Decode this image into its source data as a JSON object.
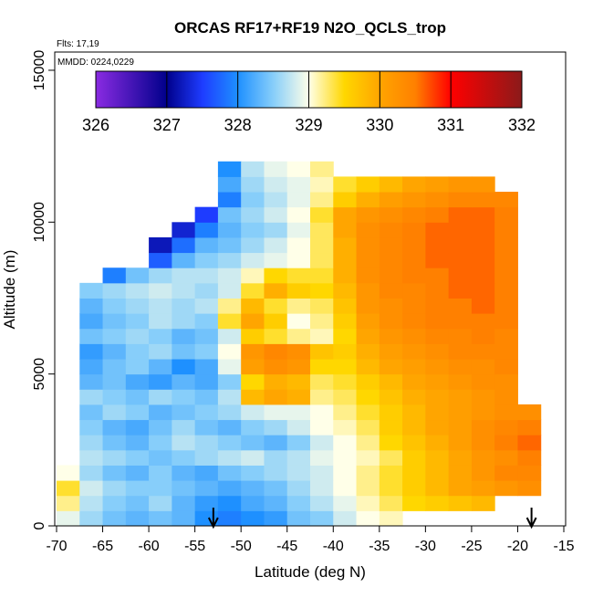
{
  "chart_data": {
    "type": "heatmap",
    "title": "ORCAS RF17+RF19 N2O_QCLS_trop",
    "annotations": [
      "Flts: 17,19",
      "MMDD: 0224,0229"
    ],
    "x_label": "Latitude (deg N)",
    "y_label": "Altitude (m)",
    "xlim": [
      -70,
      -15
    ],
    "xticks": [
      -70,
      -65,
      -60,
      -55,
      -50,
      -45,
      -40,
      -35,
      -30,
      -25,
      -20,
      -15
    ],
    "ylim": [
      0,
      15600
    ],
    "yticks": [
      0,
      5000,
      10000,
      15000
    ],
    "x": [
      -68.75,
      -66.25,
      -63.75,
      -61.25,
      -58.75,
      -56.25,
      -53.75,
      -51.25,
      -48.75,
      -46.25,
      -43.75,
      -41.25,
      -38.75,
      -36.25,
      -33.75,
      -31.25,
      -28.75,
      -26.25,
      -23.75,
      -21.25,
      -18.75
    ],
    "y": [
      250,
      750,
      1250,
      1750,
      2250,
      2750,
      3250,
      3750,
      4250,
      4750,
      5250,
      5750,
      6250,
      6750,
      7250,
      7750,
      8250,
      8750,
      9250,
      9750,
      10250,
      10750,
      11250,
      11750
    ],
    "z": [
      [
        328.9,
        328.6,
        328.4,
        328.3,
        328.4,
        328.3,
        328.0,
        327.9,
        328.0,
        328.1,
        328.4,
        328.5,
        328.8,
        329.0,
        329.1,
        null,
        null,
        null,
        null,
        null,
        null
      ],
      [
        329.2,
        328.7,
        328.5,
        328.4,
        328.6,
        328.3,
        328.1,
        328.0,
        328.2,
        328.3,
        328.5,
        328.7,
        328.9,
        329.1,
        329.3,
        329.5,
        329.6,
        329.7,
        329.8,
        null,
        null
      ],
      [
        329.4,
        328.8,
        328.6,
        328.5,
        328.5,
        328.4,
        328.3,
        328.2,
        328.3,
        328.4,
        328.6,
        328.8,
        329.0,
        329.2,
        329.4,
        329.6,
        329.8,
        330.0,
        330.1,
        330.2,
        330.3
      ],
      [
        329.0,
        328.6,
        328.4,
        328.3,
        328.5,
        328.3,
        328.2,
        328.4,
        328.5,
        328.6,
        328.7,
        328.8,
        329.0,
        329.2,
        329.4,
        329.6,
        329.8,
        330.0,
        330.2,
        330.4,
        330.4
      ],
      [
        null,
        328.7,
        328.6,
        328.5,
        328.4,
        328.5,
        328.6,
        328.7,
        328.8,
        328.6,
        328.7,
        328.9,
        329.0,
        329.1,
        329.3,
        329.6,
        329.8,
        330.0,
        330.2,
        330.3,
        330.5
      ],
      [
        null,
        328.6,
        328.4,
        328.3,
        328.5,
        328.7,
        328.6,
        328.5,
        328.4,
        328.3,
        328.5,
        328.8,
        329.0,
        329.2,
        329.5,
        329.7,
        329.9,
        330.1,
        330.3,
        330.5,
        330.6
      ],
      [
        null,
        328.5,
        328.3,
        328.2,
        328.4,
        328.6,
        328.4,
        328.3,
        328.5,
        328.6,
        328.8,
        329.0,
        329.1,
        329.3,
        329.6,
        329.8,
        330.0,
        330.1,
        330.3,
        330.4,
        330.5
      ],
      [
        null,
        328.4,
        328.6,
        328.5,
        328.3,
        328.4,
        328.5,
        328.6,
        328.8,
        328.9,
        328.9,
        329.0,
        329.2,
        329.4,
        329.6,
        329.8,
        330.0,
        330.1,
        330.2,
        330.3,
        330.3
      ],
      [
        null,
        328.6,
        328.5,
        328.4,
        328.6,
        328.5,
        328.4,
        328.7,
        329.8,
        330.0,
        329.9,
        329.2,
        329.3,
        329.5,
        329.7,
        329.9,
        330.0,
        330.1,
        330.2,
        330.3,
        null
      ],
      [
        null,
        328.3,
        328.4,
        328.2,
        328.1,
        328.3,
        328.2,
        328.5,
        329.5,
        329.9,
        329.8,
        329.3,
        329.4,
        329.6,
        329.8,
        330.0,
        330.1,
        330.2,
        330.3,
        330.3,
        null
      ],
      [
        null,
        328.2,
        328.4,
        328.5,
        328.3,
        328.0,
        328.2,
        328.9,
        330.1,
        330.3,
        330.2,
        329.5,
        329.5,
        329.8,
        330.0,
        330.1,
        330.2,
        330.3,
        330.3,
        330.4,
        null
      ],
      [
        null,
        328.1,
        328.3,
        328.5,
        328.6,
        328.4,
        328.5,
        329.0,
        330.2,
        330.4,
        330.3,
        329.7,
        329.6,
        329.9,
        330.1,
        330.2,
        330.3,
        330.4,
        330.4,
        330.4,
        null
      ],
      [
        null,
        328.4,
        328.5,
        328.6,
        328.5,
        328.3,
        328.4,
        328.8,
        329.6,
        329.4,
        329.2,
        329.1,
        329.5,
        330.0,
        330.2,
        330.3,
        330.4,
        330.4,
        330.5,
        330.4,
        null
      ],
      [
        null,
        328.2,
        328.4,
        328.5,
        328.7,
        328.6,
        328.5,
        329.4,
        330.0,
        329.6,
        329.0,
        329.2,
        329.6,
        330.1,
        330.3,
        330.4,
        330.5,
        330.5,
        330.5,
        330.5,
        null
      ],
      [
        null,
        328.3,
        328.5,
        328.6,
        328.7,
        328.6,
        328.7,
        329.2,
        329.8,
        329.4,
        329.2,
        329.3,
        329.7,
        330.2,
        330.3,
        330.4,
        330.5,
        330.5,
        330.6,
        330.5,
        null
      ],
      [
        null,
        328.5,
        328.6,
        328.7,
        328.8,
        328.7,
        328.6,
        328.8,
        329.4,
        329.9,
        329.6,
        329.5,
        329.8,
        330.2,
        330.4,
        330.4,
        330.5,
        330.6,
        330.6,
        330.5,
        null
      ],
      [
        null,
        null,
        327.9,
        328.4,
        328.6,
        328.7,
        328.7,
        328.8,
        329.1,
        329.5,
        329.4,
        329.4,
        329.9,
        330.3,
        330.4,
        330.5,
        330.5,
        330.6,
        330.6,
        330.5,
        null
      ],
      [
        null,
        null,
        null,
        null,
        327.7,
        328.3,
        328.5,
        328.6,
        328.8,
        328.9,
        329.0,
        329.3,
        329.9,
        330.3,
        330.4,
        330.5,
        330.6,
        330.6,
        330.6,
        330.5,
        null
      ],
      [
        null,
        null,
        null,
        null,
        327.2,
        327.8,
        328.3,
        328.4,
        328.6,
        328.8,
        329.0,
        329.3,
        329.9,
        330.3,
        330.4,
        330.5,
        330.6,
        330.6,
        330.6,
        330.5,
        null
      ],
      [
        null,
        null,
        null,
        null,
        null,
        327.3,
        327.9,
        328.3,
        328.5,
        328.6,
        328.9,
        329.3,
        330.0,
        330.3,
        330.4,
        330.5,
        330.6,
        330.6,
        330.6,
        330.5,
        null
      ],
      [
        null,
        null,
        null,
        null,
        null,
        null,
        327.5,
        328.4,
        328.6,
        328.8,
        329.0,
        329.4,
        330.0,
        330.2,
        330.3,
        330.4,
        330.5,
        330.6,
        330.6,
        330.5,
        null
      ],
      [
        null,
        null,
        null,
        null,
        null,
        null,
        null,
        327.9,
        328.5,
        328.7,
        328.9,
        329.2,
        329.6,
        329.9,
        330.1,
        330.2,
        330.3,
        330.4,
        330.4,
        330.4,
        null
      ],
      [
        null,
        null,
        null,
        null,
        null,
        null,
        null,
        328.2,
        328.6,
        328.8,
        328.9,
        329.1,
        329.4,
        329.6,
        329.8,
        330.0,
        330.1,
        330.2,
        330.2,
        null,
        null
      ],
      [
        null,
        null,
        null,
        null,
        null,
        null,
        null,
        328.0,
        328.7,
        328.9,
        329.0,
        329.2,
        null,
        null,
        null,
        null,
        null,
        null,
        null,
        null,
        null
      ]
    ],
    "colorbar": {
      "lim": [
        326,
        332
      ],
      "ticks": [
        326,
        327,
        328,
        329,
        330,
        331,
        332
      ],
      "stops": [
        [
          326,
          "#8a2be2"
        ],
        [
          327,
          "#00008b"
        ],
        [
          327.5,
          "#1e3cff"
        ],
        [
          328,
          "#1e90ff"
        ],
        [
          328.5,
          "#87cefa"
        ],
        [
          329,
          "#ffffe8"
        ],
        [
          329.5,
          "#ffd700"
        ],
        [
          330,
          "#ffa500"
        ],
        [
          330.5,
          "#ff8000"
        ],
        [
          331,
          "#ff0000"
        ],
        [
          332,
          "#8b1a1a"
        ]
      ]
    },
    "arrows_x": [
      -53,
      -18.5
    ]
  }
}
